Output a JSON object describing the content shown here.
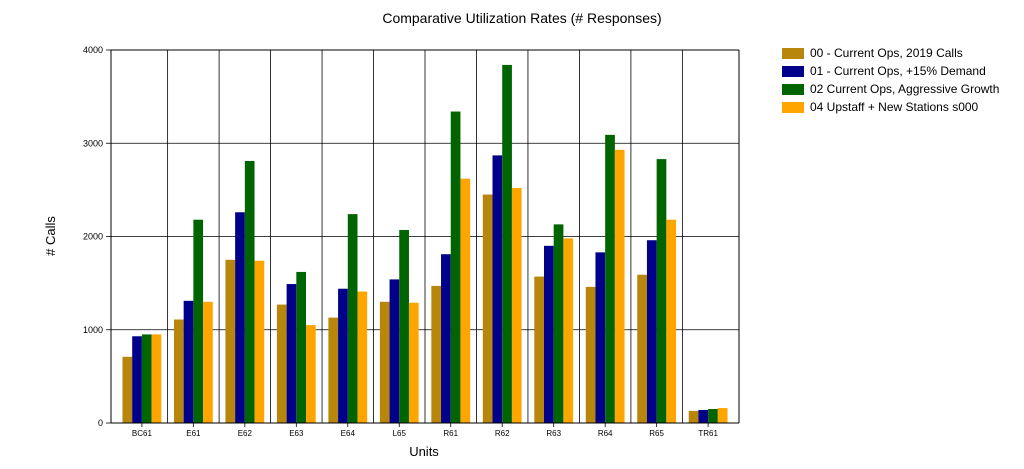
{
  "chart_data": {
    "type": "bar",
    "title": "Comparative Utilization Rates (# Responses)",
    "xlabel": "Units",
    "ylabel": "# Calls",
    "ylim": [
      0,
      4000
    ],
    "yticks": [
      0,
      1000,
      2000,
      3000,
      4000
    ],
    "grid": true,
    "legend_position": "right",
    "categories": [
      "BC61",
      "E61",
      "E62",
      "E63",
      "E64",
      "L65",
      "R61",
      "R62",
      "R63",
      "R64",
      "R65",
      "TR61"
    ],
    "series": [
      {
        "name": "00 - Current Ops, 2019 Calls",
        "color": "#b8860b",
        "values": [
          710,
          1110,
          1750,
          1270,
          1130,
          1300,
          1470,
          2450,
          1570,
          1460,
          1590,
          130
        ]
      },
      {
        "name": "01 - Current Ops, +15% Demand",
        "color": "#00008b",
        "values": [
          930,
          1310,
          2260,
          1490,
          1440,
          1540,
          1810,
          2870,
          1900,
          1830,
          1960,
          140
        ]
      },
      {
        "name": "02 Current Ops, Aggressive Growth",
        "color": "#006400",
        "values": [
          950,
          2180,
          2810,
          1620,
          2240,
          2070,
          3340,
          3840,
          2130,
          3090,
          2830,
          150
        ]
      },
      {
        "name": "04 Upstaff + New Stations s000",
        "color": "#ffa500",
        "values": [
          950,
          1300,
          1740,
          1050,
          1410,
          1290,
          2620,
          2520,
          1980,
          2930,
          2180,
          160
        ]
      }
    ]
  }
}
